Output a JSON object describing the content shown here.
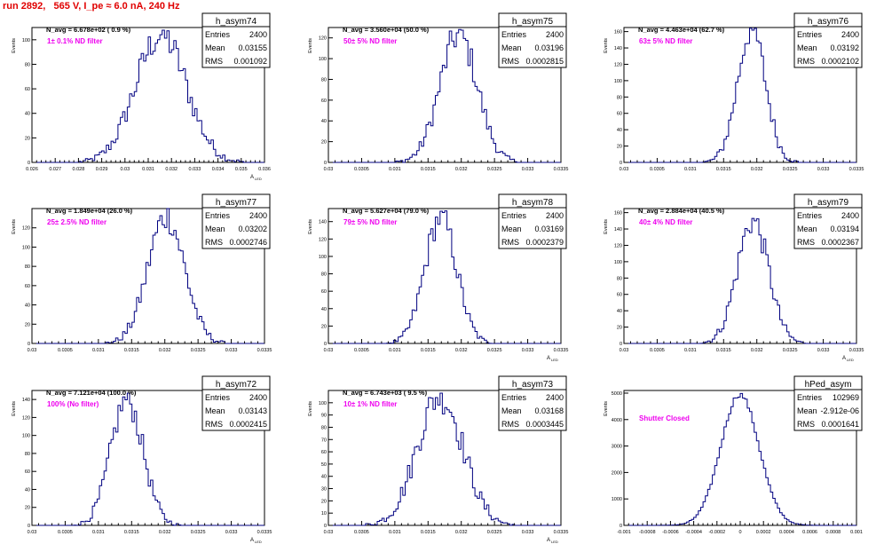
{
  "header": {
    "run_title": "run 2892,   565 V, I_pe ≈ 6.0 nA, 240 Hz"
  },
  "colors": {
    "histogram_line": "#000080",
    "annotation_magenta": "#ee00ee",
    "title_red": "#e00000",
    "frame": "#000000"
  },
  "chart_data": [
    {
      "type": "histogram",
      "name": "h_asym74",
      "stats": {
        "Entries": "2400",
        "Mean": "0.03155",
        "RMS": "0.001092"
      },
      "navg_label": "N_avg = 6.678e+02 ( 0.9 %)",
      "filter_label": "1± 0.1% ND filter",
      "ylabel": "Events",
      "xlabel": "A",
      "xlabel_sub": "LED",
      "xlim": [
        0.026,
        0.036
      ],
      "ylim": [
        0,
        110
      ],
      "xticks": [
        "0.026",
        "0.027",
        "0.028",
        "0.029",
        "0.03",
        "0.031",
        "0.032",
        "0.033",
        "0.034",
        "0.035",
        "0.036"
      ],
      "yticks": [
        "0",
        "20",
        "40",
        "60",
        "80",
        "100"
      ],
      "mean": 0.03155,
      "rms": 0.001092,
      "peak": 104,
      "entries": 2400
    },
    {
      "type": "histogram",
      "name": "h_asym75",
      "stats": {
        "Entries": "2400",
        "Mean": "0.03196",
        "RMS": "0.0002815"
      },
      "navg_label": "N_avg = 3.560e+04 (50.0 %)",
      "filter_label": "50± 5% ND filter",
      "ylabel": "Events",
      "xlabel": "",
      "xlabel_sub": "",
      "xlim": [
        0.03,
        0.0335
      ],
      "ylim": [
        0,
        130
      ],
      "xticks": [
        "0.03",
        "0.0305",
        "0.031",
        "0.0315",
        "0.032",
        "0.0325",
        "0.033",
        "0.0335"
      ],
      "yticks": [
        "0",
        "20",
        "40",
        "60",
        "80",
        "100",
        "120"
      ],
      "mean": 0.03196,
      "rms": 0.0002815,
      "peak": 123,
      "entries": 2400
    },
    {
      "type": "histogram",
      "name": "h_asym76",
      "stats": {
        "Entries": "2400",
        "Mean": "0.03192",
        "RMS": "0.0002102"
      },
      "navg_label": "N_avg = 4.463e+04 (62.7 %)",
      "filter_label": "63± 5% ND filter",
      "ylabel": "Events",
      "xlabel": "",
      "xlabel_sub": "",
      "xlim": [
        0.03,
        0.0335
      ],
      "ylim": [
        0,
        165
      ],
      "xticks": [
        "0.03",
        "0.0305",
        "0.031",
        "0.0315",
        "0.032",
        "0.0325",
        "0.033",
        "0.0335"
      ],
      "yticks": [
        "0",
        "20",
        "40",
        "60",
        "80",
        "100",
        "120",
        "140",
        "160"
      ],
      "mean": 0.03192,
      "rms": 0.0002102,
      "peak": 163,
      "entries": 2400
    },
    {
      "type": "histogram",
      "name": "h_asym77",
      "stats": {
        "Entries": "2400",
        "Mean": "0.03202",
        "RMS": "0.0002746"
      },
      "navg_label": "N_avg = 1.849e+04 (26.0 %)",
      "filter_label": "25± 2.5% ND filter",
      "ylabel": "Events",
      "xlabel": "",
      "xlabel_sub": "",
      "xlim": [
        0.03,
        0.0335
      ],
      "ylim": [
        0,
        140
      ],
      "xticks": [
        "0.03",
        "0.0305",
        "0.031",
        "0.0315",
        "0.032",
        "0.0325",
        "0.033",
        "0.0335"
      ],
      "yticks": [
        "0",
        "20",
        "40",
        "60",
        "80",
        "100",
        "120"
      ],
      "mean": 0.03202,
      "rms": 0.0002746,
      "peak": 132,
      "entries": 2400
    },
    {
      "type": "histogram",
      "name": "h_asym78",
      "stats": {
        "Entries": "2400",
        "Mean": "0.03169",
        "RMS": "0.0002379"
      },
      "navg_label": "N_avg = 5.627e+04 (79.0 %)",
      "filter_label": "79± 5% ND filter",
      "ylabel": "Events",
      "xlabel": "A",
      "xlabel_sub": "LED",
      "xlim": [
        0.03,
        0.0335
      ],
      "ylim": [
        0,
        155
      ],
      "xticks": [
        "0.03",
        "0.0305",
        "0.031",
        "0.0315",
        "0.032",
        "0.0325",
        "0.033",
        "0.0335"
      ],
      "yticks": [
        "0",
        "20",
        "40",
        "60",
        "80",
        "100",
        "120",
        "140"
      ],
      "mean": 0.03169,
      "rms": 0.0002379,
      "peak": 145,
      "entries": 2400
    },
    {
      "type": "histogram",
      "name": "h_asym79",
      "stats": {
        "Entries": "2400",
        "Mean": "0.03194",
        "RMS": "0.0002367"
      },
      "navg_label": "N_avg = 2.884e+04 (40.5 %)",
      "filter_label": "40± 4% ND filter",
      "ylabel": "Events",
      "xlabel": "A",
      "xlabel_sub": "LED",
      "xlim": [
        0.03,
        0.0335
      ],
      "ylim": [
        0,
        165
      ],
      "xticks": [
        "0.03",
        "0.0305",
        "0.031",
        "0.0315",
        "0.032",
        "0.0325",
        "0.033",
        "0.0335"
      ],
      "yticks": [
        "0",
        "20",
        "40",
        "60",
        "80",
        "100",
        "120",
        "140",
        "160"
      ],
      "mean": 0.03194,
      "rms": 0.0002367,
      "peak": 150,
      "entries": 2400
    },
    {
      "type": "histogram",
      "name": "h_asym72",
      "stats": {
        "Entries": "2400",
        "Mean": "0.03143",
        "RMS": "0.0002415"
      },
      "navg_label": "N_avg = 7.121e+04 (100.0 %)",
      "filter_label": "100% (No filter)",
      "ylabel": "Events",
      "xlabel": "A",
      "xlabel_sub": "LED",
      "xlim": [
        0.03,
        0.0335
      ],
      "ylim": [
        0,
        150
      ],
      "xticks": [
        "0.03",
        "0.0305",
        "0.031",
        "0.0315",
        "0.032",
        "0.0325",
        "0.033",
        "0.0335"
      ],
      "yticks": [
        "0",
        "20",
        "40",
        "60",
        "80",
        "100",
        "120",
        "140"
      ],
      "mean": 0.03143,
      "rms": 0.0002415,
      "peak": 140,
      "entries": 2400
    },
    {
      "type": "histogram",
      "name": "h_asym73",
      "stats": {
        "Entries": "2400",
        "Mean": "0.03168",
        "RMS": "0.0003445"
      },
      "navg_label": "N_avg = 6.743e+03 ( 9.5 %)",
      "filter_label": "10± 1% ND filter",
      "ylabel": "Events",
      "xlabel": "A",
      "xlabel_sub": "LED",
      "xlim": [
        0.03,
        0.0335
      ],
      "ylim": [
        0,
        110
      ],
      "xticks": [
        "0.03",
        "0.0305",
        "0.031",
        "0.0315",
        "0.032",
        "0.0325",
        "0.033",
        "0.0335"
      ],
      "yticks": [
        "0",
        "10",
        "20",
        "30",
        "40",
        "50",
        "60",
        "70",
        "80",
        "90",
        "100"
      ],
      "mean": 0.03168,
      "rms": 0.0003445,
      "peak": 106,
      "entries": 2400
    },
    {
      "type": "histogram",
      "name": "hPed_asym",
      "stats": {
        "Entries": "102969",
        "Mean": "-2.912e-06",
        "RMS": "0.0001641"
      },
      "navg_label": "",
      "filter_label": "Shutter Closed",
      "ylabel": "Events",
      "xlabel": "",
      "xlabel_sub": "",
      "xlim": [
        -0.001,
        0.001
      ],
      "ylim": [
        0,
        5100
      ],
      "xticks": [
        "-0.001",
        "-0.0008",
        "-0.0006",
        "-0.0004",
        "-0.0002",
        "0",
        "0.0002",
        "0.0004",
        "0.0006",
        "0.0008",
        "0.001"
      ],
      "yticks": [
        "0",
        "1000",
        "2000",
        "3000",
        "4000",
        "5000"
      ],
      "mean": -2.912e-06,
      "rms": 0.0001641,
      "peak": 4950,
      "entries": 102969
    }
  ]
}
